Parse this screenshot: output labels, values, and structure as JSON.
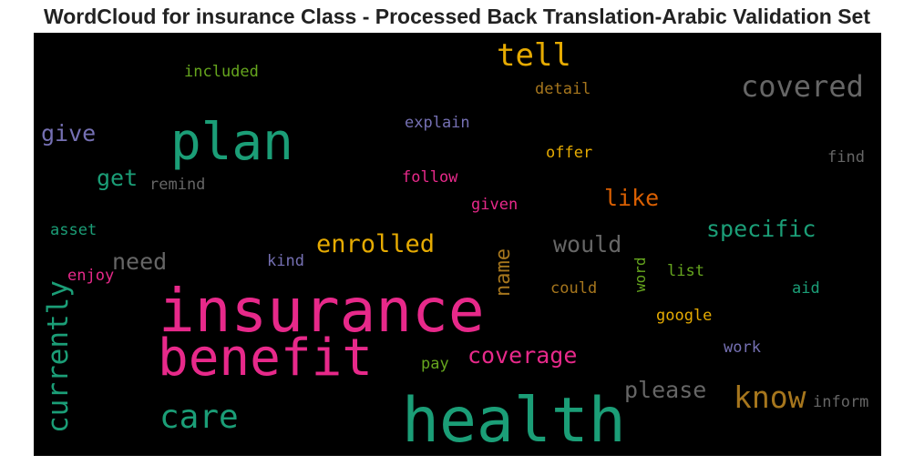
{
  "title": "WordCloud for insurance Class - Processed Back Translation-Arabic Validation Set",
  "chart_data": {
    "type": "wordcloud",
    "title": "WordCloud for insurance Class - Processed Back Translation-Arabic Validation Set",
    "background": "#000000",
    "colormap": "Dark2",
    "words": [
      {
        "text": "health",
        "weight": 1.0,
        "color": "#1b9e77",
        "orientation": "horizontal"
      },
      {
        "text": "insurance",
        "weight": 0.95,
        "color": "#e7298a",
        "orientation": "horizontal"
      },
      {
        "text": "plan",
        "weight": 0.88,
        "color": "#1b9e77",
        "orientation": "horizontal"
      },
      {
        "text": "benefit",
        "weight": 0.82,
        "color": "#e7298a",
        "orientation": "horizontal"
      },
      {
        "text": "care",
        "weight": 0.55,
        "color": "#1b9e77",
        "orientation": "horizontal"
      },
      {
        "text": "currently",
        "weight": 0.52,
        "color": "#1b9e77",
        "orientation": "vertical"
      },
      {
        "text": "covered",
        "weight": 0.5,
        "color": "#666666",
        "orientation": "horizontal"
      },
      {
        "text": "know",
        "weight": 0.48,
        "color": "#a6761d",
        "orientation": "horizontal"
      },
      {
        "text": "tell",
        "weight": 0.46,
        "color": "#e6ab02",
        "orientation": "horizontal"
      },
      {
        "text": "enrolled",
        "weight": 0.42,
        "color": "#e6ab02",
        "orientation": "horizontal"
      },
      {
        "text": "coverage",
        "weight": 0.38,
        "color": "#e7298a",
        "orientation": "horizontal"
      },
      {
        "text": "please",
        "weight": 0.37,
        "color": "#666666",
        "orientation": "horizontal"
      },
      {
        "text": "specific",
        "weight": 0.37,
        "color": "#1b9e77",
        "orientation": "horizontal"
      },
      {
        "text": "would",
        "weight": 0.36,
        "color": "#666666",
        "orientation": "horizontal"
      },
      {
        "text": "need",
        "weight": 0.35,
        "color": "#666666",
        "orientation": "horizontal"
      },
      {
        "text": "like",
        "weight": 0.35,
        "color": "#d95f02",
        "orientation": "horizontal"
      },
      {
        "text": "give",
        "weight": 0.34,
        "color": "#7570b3",
        "orientation": "horizontal"
      },
      {
        "text": "get",
        "weight": 0.33,
        "color": "#1b9e77",
        "orientation": "horizontal"
      },
      {
        "text": "name",
        "weight": 0.3,
        "color": "#a6761d",
        "orientation": "vertical"
      },
      {
        "text": "inform",
        "weight": 0.24,
        "color": "#666666",
        "orientation": "horizontal"
      },
      {
        "text": "detail",
        "weight": 0.23,
        "color": "#a6761d",
        "orientation": "horizontal"
      },
      {
        "text": "explain",
        "weight": 0.23,
        "color": "#7570b3",
        "orientation": "horizontal"
      },
      {
        "text": "included",
        "weight": 0.23,
        "color": "#66a61e",
        "orientation": "horizontal"
      },
      {
        "text": "offer",
        "weight": 0.23,
        "color": "#e6ab02",
        "orientation": "horizontal"
      },
      {
        "text": "find",
        "weight": 0.22,
        "color": "#666666",
        "orientation": "horizontal"
      },
      {
        "text": "follow",
        "weight": 0.22,
        "color": "#e7298a",
        "orientation": "horizontal"
      },
      {
        "text": "remind",
        "weight": 0.22,
        "color": "#666666",
        "orientation": "horizontal"
      },
      {
        "text": "given",
        "weight": 0.22,
        "color": "#e7298a",
        "orientation": "horizontal"
      },
      {
        "text": "asset",
        "weight": 0.21,
        "color": "#1b9e77",
        "orientation": "horizontal"
      },
      {
        "text": "kind",
        "weight": 0.21,
        "color": "#7570b3",
        "orientation": "horizontal"
      },
      {
        "text": "enjoy",
        "weight": 0.21,
        "color": "#e7298a",
        "orientation": "horizontal"
      },
      {
        "text": "could",
        "weight": 0.22,
        "color": "#a6761d",
        "orientation": "horizontal"
      },
      {
        "text": "list",
        "weight": 0.21,
        "color": "#66a61e",
        "orientation": "horizontal"
      },
      {
        "text": "aid",
        "weight": 0.21,
        "color": "#1b9e77",
        "orientation": "horizontal"
      },
      {
        "text": "word",
        "weight": 0.21,
        "color": "#66a61e",
        "orientation": "vertical"
      },
      {
        "text": "google",
        "weight": 0.22,
        "color": "#e6ab02",
        "orientation": "horizontal"
      },
      {
        "text": "work",
        "weight": 0.21,
        "color": "#7570b3",
        "orientation": "horizontal"
      },
      {
        "text": "pay",
        "weight": 0.21,
        "color": "#66a61e",
        "orientation": "horizontal"
      }
    ]
  }
}
